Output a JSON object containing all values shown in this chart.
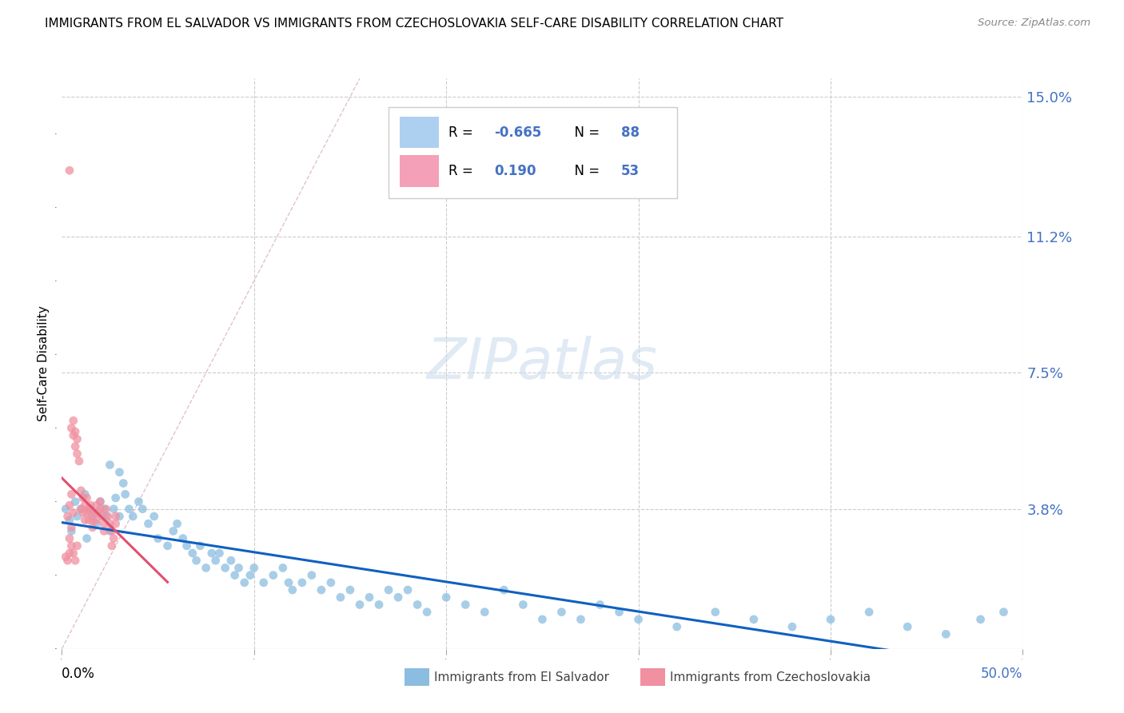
{
  "title": "IMMIGRANTS FROM EL SALVADOR VS IMMIGRANTS FROM CZECHOSLOVAKIA SELF-CARE DISABILITY CORRELATION CHART",
  "source": "Source: ZipAtlas.com",
  "ylabel": "Self-Care Disability",
  "ytick_labels": [
    "15.0%",
    "11.2%",
    "7.5%",
    "3.8%"
  ],
  "ytick_values": [
    0.15,
    0.112,
    0.075,
    0.038
  ],
  "xlim": [
    0.0,
    0.5
  ],
  "ylim": [
    0.0,
    0.155
  ],
  "el_salvador_color": "#8bbde0",
  "czechoslovakia_color": "#f090a0",
  "regression_el_salvador_color": "#1060c0",
  "regression_czechoslovakia_color": "#e05070",
  "diagonal_color": "#cccccc",
  "legend_box_color": "#aed0f0",
  "legend_pink_color": "#f4a0b8",
  "el_salvador_points": [
    [
      0.002,
      0.038
    ],
    [
      0.004,
      0.035
    ],
    [
      0.005,
      0.032
    ],
    [
      0.007,
      0.04
    ],
    [
      0.008,
      0.036
    ],
    [
      0.01,
      0.038
    ],
    [
      0.012,
      0.042
    ],
    [
      0.013,
      0.03
    ],
    [
      0.015,
      0.038
    ],
    [
      0.016,
      0.036
    ],
    [
      0.018,
      0.034
    ],
    [
      0.02,
      0.04
    ],
    [
      0.022,
      0.038
    ],
    [
      0.023,
      0.036
    ],
    [
      0.025,
      0.032
    ],
    [
      0.027,
      0.038
    ],
    [
      0.028,
      0.041
    ],
    [
      0.03,
      0.036
    ],
    [
      0.032,
      0.045
    ],
    [
      0.033,
      0.042
    ],
    [
      0.035,
      0.038
    ],
    [
      0.037,
      0.036
    ],
    [
      0.04,
      0.04
    ],
    [
      0.042,
      0.038
    ],
    [
      0.045,
      0.034
    ],
    [
      0.048,
      0.036
    ],
    [
      0.05,
      0.03
    ],
    [
      0.055,
      0.028
    ],
    [
      0.058,
      0.032
    ],
    [
      0.06,
      0.034
    ],
    [
      0.063,
      0.03
    ],
    [
      0.065,
      0.028
    ],
    [
      0.068,
      0.026
    ],
    [
      0.07,
      0.024
    ],
    [
      0.072,
      0.028
    ],
    [
      0.075,
      0.022
    ],
    [
      0.078,
      0.026
    ],
    [
      0.08,
      0.024
    ],
    [
      0.082,
      0.026
    ],
    [
      0.085,
      0.022
    ],
    [
      0.088,
      0.024
    ],
    [
      0.09,
      0.02
    ],
    [
      0.092,
      0.022
    ],
    [
      0.095,
      0.018
    ],
    [
      0.098,
      0.02
    ],
    [
      0.1,
      0.022
    ],
    [
      0.105,
      0.018
    ],
    [
      0.11,
      0.02
    ],
    [
      0.115,
      0.022
    ],
    [
      0.118,
      0.018
    ],
    [
      0.12,
      0.016
    ],
    [
      0.125,
      0.018
    ],
    [
      0.13,
      0.02
    ],
    [
      0.135,
      0.016
    ],
    [
      0.14,
      0.018
    ],
    [
      0.145,
      0.014
    ],
    [
      0.15,
      0.016
    ],
    [
      0.155,
      0.012
    ],
    [
      0.16,
      0.014
    ],
    [
      0.165,
      0.012
    ],
    [
      0.17,
      0.016
    ],
    [
      0.175,
      0.014
    ],
    [
      0.18,
      0.016
    ],
    [
      0.185,
      0.012
    ],
    [
      0.19,
      0.01
    ],
    [
      0.2,
      0.014
    ],
    [
      0.21,
      0.012
    ],
    [
      0.22,
      0.01
    ],
    [
      0.23,
      0.016
    ],
    [
      0.24,
      0.012
    ],
    [
      0.25,
      0.008
    ],
    [
      0.26,
      0.01
    ],
    [
      0.27,
      0.008
    ],
    [
      0.28,
      0.012
    ],
    [
      0.29,
      0.01
    ],
    [
      0.3,
      0.008
    ],
    [
      0.32,
      0.006
    ],
    [
      0.34,
      0.01
    ],
    [
      0.36,
      0.008
    ],
    [
      0.38,
      0.006
    ],
    [
      0.4,
      0.008
    ],
    [
      0.42,
      0.01
    ],
    [
      0.44,
      0.006
    ],
    [
      0.46,
      0.004
    ],
    [
      0.478,
      0.008
    ],
    [
      0.49,
      0.01
    ],
    [
      0.025,
      0.05
    ],
    [
      0.03,
      0.048
    ]
  ],
  "czechoslovakia_points": [
    [
      0.003,
      0.036
    ],
    [
      0.004,
      0.039
    ],
    [
      0.005,
      0.033
    ],
    [
      0.005,
      0.042
    ],
    [
      0.006,
      0.037
    ],
    [
      0.005,
      0.06
    ],
    [
      0.006,
      0.058
    ],
    [
      0.006,
      0.062
    ],
    [
      0.007,
      0.055
    ],
    [
      0.007,
      0.059
    ],
    [
      0.008,
      0.053
    ],
    [
      0.008,
      0.057
    ],
    [
      0.009,
      0.051
    ],
    [
      0.01,
      0.038
    ],
    [
      0.01,
      0.043
    ],
    [
      0.011,
      0.037
    ],
    [
      0.011,
      0.041
    ],
    [
      0.012,
      0.035
    ],
    [
      0.012,
      0.039
    ],
    [
      0.013,
      0.037
    ],
    [
      0.013,
      0.041
    ],
    [
      0.014,
      0.038
    ],
    [
      0.014,
      0.035
    ],
    [
      0.015,
      0.037
    ],
    [
      0.015,
      0.039
    ],
    [
      0.016,
      0.035
    ],
    [
      0.016,
      0.033
    ],
    [
      0.017,
      0.037
    ],
    [
      0.018,
      0.039
    ],
    [
      0.018,
      0.035
    ],
    [
      0.019,
      0.037
    ],
    [
      0.02,
      0.04
    ],
    [
      0.02,
      0.038
    ],
    [
      0.021,
      0.036
    ],
    [
      0.022,
      0.034
    ],
    [
      0.022,
      0.032
    ],
    [
      0.023,
      0.038
    ],
    [
      0.024,
      0.036
    ],
    [
      0.025,
      0.034
    ],
    [
      0.026,
      0.032
    ],
    [
      0.026,
      0.028
    ],
    [
      0.027,
      0.03
    ],
    [
      0.028,
      0.034
    ],
    [
      0.028,
      0.036
    ],
    [
      0.004,
      0.13
    ],
    [
      0.002,
      0.025
    ],
    [
      0.003,
      0.024
    ],
    [
      0.004,
      0.026
    ],
    [
      0.004,
      0.03
    ],
    [
      0.005,
      0.028
    ],
    [
      0.006,
      0.026
    ],
    [
      0.007,
      0.024
    ],
    [
      0.008,
      0.028
    ]
  ]
}
